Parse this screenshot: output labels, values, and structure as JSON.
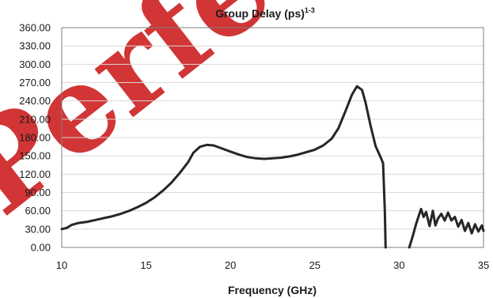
{
  "chart_data": {
    "type": "line",
    "title": "Group Delay (ps)",
    "title_sup": "1-3",
    "xlabel": "Frequency (GHz)",
    "ylabel": "",
    "xlim": [
      10,
      35
    ],
    "ylim": [
      0,
      360
    ],
    "xticks": [
      "10",
      "15",
      "20",
      "25",
      "30",
      "35"
    ],
    "yticks": [
      "0.00",
      "30.00",
      "60.00",
      "90.00",
      "120.00",
      "150.00",
      "180.00",
      "210.00",
      "240.00",
      "270.00",
      "300.00",
      "330.00",
      "360.00"
    ],
    "grid": "horizontal",
    "legend": "none",
    "colors": {
      "line": "#262626",
      "grid": "#d9d9d9",
      "axis": "#7f7f7f",
      "watermark": "#cc1f1f"
    },
    "series": [
      {
        "segments": [
          [
            [
              10.0,
              30
            ],
            [
              10.3,
              32
            ],
            [
              10.6,
              37
            ],
            [
              11.0,
              40
            ],
            [
              11.5,
              42
            ],
            [
              12.0,
              45
            ],
            [
              12.5,
              48
            ],
            [
              13.0,
              51
            ],
            [
              13.5,
              55
            ],
            [
              14.0,
              60
            ],
            [
              14.5,
              66
            ],
            [
              15.0,
              73
            ],
            [
              15.5,
              82
            ],
            [
              16.0,
              93
            ],
            [
              16.5,
              106
            ],
            [
              17.0,
              122
            ],
            [
              17.5,
              140
            ],
            [
              17.8,
              155
            ],
            [
              18.2,
              165
            ],
            [
              18.6,
              168
            ],
            [
              19.0,
              167
            ],
            [
              19.5,
              162
            ],
            [
              20.0,
              157
            ],
            [
              20.5,
              152
            ],
            [
              21.0,
              148
            ],
            [
              21.5,
              146
            ],
            [
              22.0,
              145
            ],
            [
              22.5,
              146
            ],
            [
              23.0,
              147
            ],
            [
              23.5,
              149
            ],
            [
              24.0,
              152
            ],
            [
              24.5,
              156
            ],
            [
              25.0,
              160
            ],
            [
              25.5,
              167
            ],
            [
              26.0,
              178
            ],
            [
              26.4,
              195
            ],
            [
              26.8,
              222
            ],
            [
              27.2,
              250
            ],
            [
              27.5,
              264
            ],
            [
              27.8,
              258
            ],
            [
              28.0,
              238
            ],
            [
              28.3,
              200
            ],
            [
              28.6,
              166
            ],
            [
              28.9,
              148
            ],
            [
              29.05,
              138
            ],
            [
              29.15,
              60
            ],
            [
              29.2,
              0
            ]
          ],
          [
            [
              30.6,
              0
            ],
            [
              30.8,
              18
            ],
            [
              31.0,
              38
            ],
            [
              31.2,
              55
            ],
            [
              31.3,
              63
            ],
            [
              31.45,
              50
            ],
            [
              31.6,
              58
            ],
            [
              31.8,
              35
            ],
            [
              32.0,
              60
            ],
            [
              32.15,
              36
            ],
            [
              32.3,
              47
            ],
            [
              32.5,
              55
            ],
            [
              32.7,
              44
            ],
            [
              32.9,
              57
            ],
            [
              33.1,
              44
            ],
            [
              33.3,
              50
            ],
            [
              33.5,
              34
            ],
            [
              33.7,
              45
            ],
            [
              33.9,
              27
            ],
            [
              34.1,
              40
            ],
            [
              34.3,
              23
            ],
            [
              34.5,
              38
            ],
            [
              34.7,
              26
            ],
            [
              34.9,
              36
            ],
            [
              35.0,
              27
            ]
          ]
        ]
      }
    ]
  }
}
